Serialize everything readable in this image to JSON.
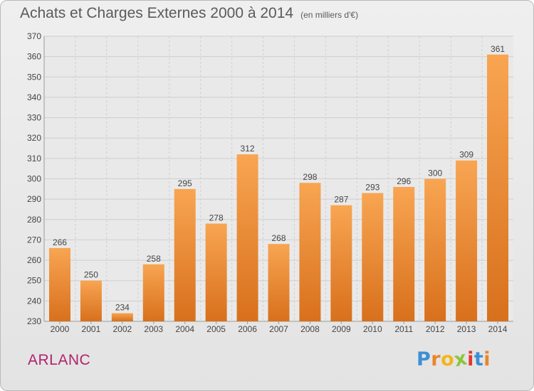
{
  "title": "Achats et Charges Externes 2000 à 2014",
  "unit": "(en milliers d'€)",
  "place": "ARLANC",
  "logo": {
    "letters": [
      "P",
      "r",
      "o",
      "x",
      "i",
      "t",
      "i"
    ],
    "colors": [
      "#3d8fd4",
      "#e8862a",
      "#f2b51d",
      "#8cc63e",
      "#e4372e",
      "#3d8fd4",
      "#e8862a"
    ]
  },
  "colors": {
    "bar_light": "#f8a552",
    "bar_dark": "#d8701c",
    "grid": "#cfcfcf",
    "text": "#444444"
  },
  "chart_data": {
    "type": "bar",
    "categories": [
      "2000",
      "2001",
      "2002",
      "2003",
      "2004",
      "2005",
      "2006",
      "2007",
      "2008",
      "2009",
      "2010",
      "2011",
      "2012",
      "2013",
      "2014"
    ],
    "values": [
      266,
      250,
      234,
      258,
      295,
      278,
      312,
      268,
      298,
      287,
      293,
      296,
      300,
      309,
      361
    ],
    "ylim": [
      230,
      370
    ],
    "yticks": [
      230,
      240,
      250,
      260,
      270,
      280,
      290,
      300,
      310,
      320,
      330,
      340,
      350,
      360,
      370
    ],
    "grid": true,
    "data_labels": true
  }
}
